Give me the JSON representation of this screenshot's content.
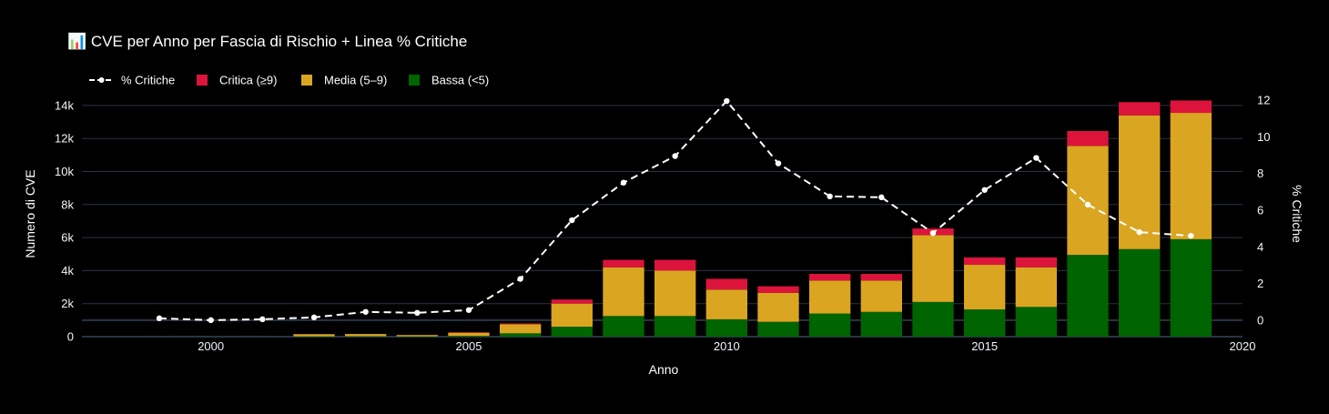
{
  "chart_data": {
    "type": "bar",
    "barmode": "stack",
    "title": "📊 CVE per Anno per Fascia di Rischio + Linea % Critiche",
    "xlabel": "Anno",
    "ylabel": "Numero di CVE",
    "y2label": "% Critiche",
    "x": [
      1999,
      2000,
      2001,
      2002,
      2003,
      2004,
      2005,
      2006,
      2007,
      2008,
      2009,
      2010,
      2011,
      2012,
      2013,
      2014,
      2015,
      2016,
      2017,
      2018,
      2019
    ],
    "xlim": [
      1997.5,
      2020
    ],
    "xticks": [
      2000,
      2005,
      2010,
      2015,
      2020
    ],
    "ylim": [
      0,
      14600
    ],
    "yticks": [
      0,
      2000,
      4000,
      6000,
      8000,
      10000,
      12000,
      14000
    ],
    "ytick_labels": [
      "0",
      "2k",
      "4k",
      "6k",
      "8k",
      "10k",
      "12k",
      "14k"
    ],
    "y2lim": [
      -0.9,
      12.25
    ],
    "y2ticks": [
      0,
      2,
      4,
      6,
      8,
      10,
      12
    ],
    "y2tick_labels": [
      "0",
      "2",
      "4",
      "6",
      "8",
      "10",
      "12"
    ],
    "grid": true,
    "legend_position": "top-left",
    "series": [
      {
        "name": "Bassa (<5)",
        "kind": "bar",
        "color": "#006400",
        "values": [
          0,
          0,
          0,
          20,
          30,
          20,
          50,
          200,
          600,
          1250,
          1250,
          1050,
          900,
          1400,
          1500,
          2100,
          1650,
          1800,
          4950,
          5300,
          5900
        ]
      },
      {
        "name": "Media (5–9)",
        "kind": "bar",
        "color": "#DAA520",
        "values": [
          0,
          0,
          0,
          130,
          130,
          80,
          200,
          550,
          1400,
          2950,
          2750,
          1800,
          1750,
          2000,
          1900,
          4050,
          2700,
          2400,
          6600,
          8100,
          7650
        ]
      },
      {
        "name": "Critica (≥9)",
        "kind": "bar",
        "color": "#DC143C",
        "values": [
          0,
          0,
          0,
          0,
          0,
          0,
          10,
          50,
          250,
          450,
          650,
          650,
          400,
          400,
          400,
          400,
          450,
          600,
          900,
          800,
          750
        ]
      },
      {
        "name": "% Critiche",
        "kind": "line",
        "axis": "y2",
        "color": "#ffffff",
        "values": [
          0.1,
          0.0,
          0.05,
          0.15,
          0.45,
          0.4,
          0.55,
          2.25,
          5.45,
          7.5,
          8.95,
          11.95,
          8.55,
          6.75,
          6.7,
          4.75,
          7.1,
          8.85,
          6.3,
          4.8,
          4.6
        ]
      }
    ],
    "legend": [
      {
        "label": "% Critiche",
        "symbol": "line",
        "color": "#ffffff"
      },
      {
        "label": "Critica (≥9)",
        "symbol": "square",
        "color": "#DC143C"
      },
      {
        "label": "Media (5–9)",
        "symbol": "square",
        "color": "#DAA520"
      },
      {
        "label": "Bassa (<5)",
        "symbol": "square",
        "color": "#006400"
      }
    ],
    "colors": {
      "background": "#000000",
      "grid": "#283442",
      "text": "#ffffff",
      "tick_text": "#f2f5fa"
    }
  }
}
